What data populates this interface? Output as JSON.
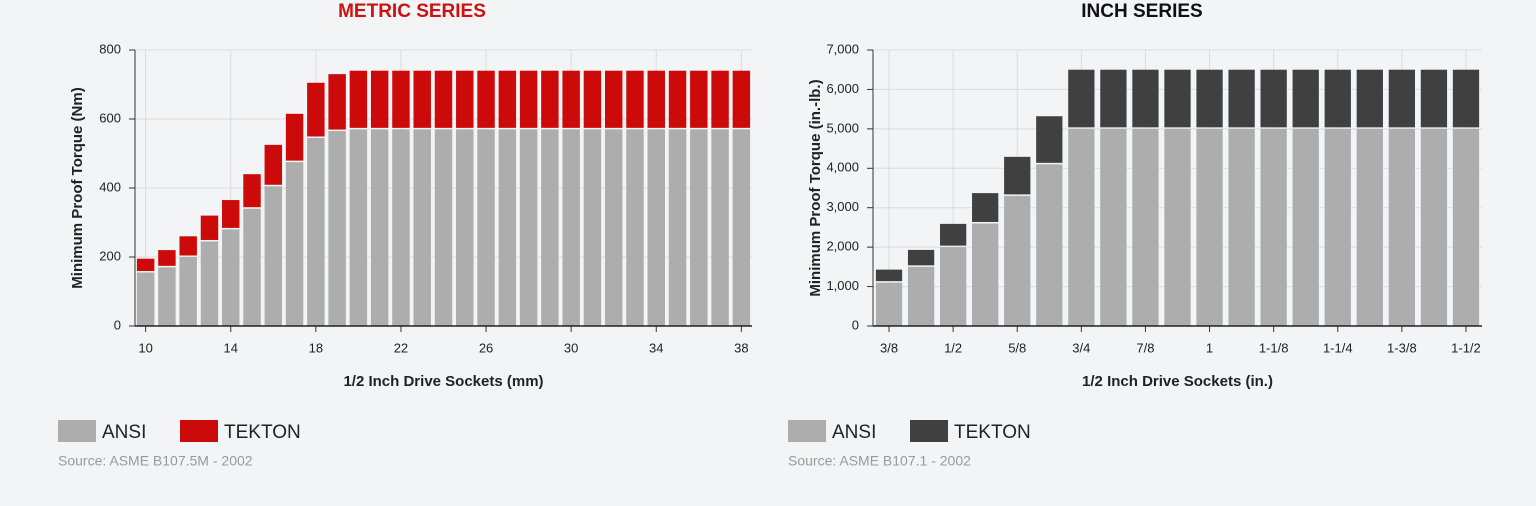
{
  "chart_data": [
    {
      "type": "bar",
      "stacked": true,
      "title": "METRIC SERIES",
      "title_color": "#cc1111",
      "x_label": "1/2 Inch Drive Sockets (mm)",
      "y_label": "Minimum Proof Torque (Nm)",
      "x": [
        10,
        11,
        12,
        13,
        14,
        15,
        16,
        17,
        18,
        19,
        20,
        21,
        22,
        23,
        24,
        25,
        26,
        27,
        28,
        29,
        30,
        31,
        32,
        33,
        34,
        35,
        36,
        37,
        38
      ],
      "xlim": [
        9.5,
        38.5
      ],
      "xticks": [
        10,
        14,
        18,
        22,
        26,
        30,
        34,
        38
      ],
      "ylim": [
        0,
        800
      ],
      "yticks": [
        0,
        200,
        400,
        600,
        800
      ],
      "grid": true,
      "series": [
        {
          "name": "ANSI",
          "color": "#adadad",
          "values": [
            155,
            170,
            200,
            245,
            280,
            340,
            405,
            475,
            545,
            565,
            570,
            570,
            570,
            570,
            570,
            570,
            570,
            570,
            570,
            570,
            570,
            570,
            570,
            570,
            570,
            570,
            570,
            570,
            570
          ]
        },
        {
          "name": "TEKTON",
          "color": "#cc0a0a",
          "values": [
            40,
            50,
            60,
            75,
            85,
            100,
            120,
            140,
            160,
            165,
            170,
            170,
            170,
            170,
            170,
            170,
            170,
            170,
            170,
            170,
            170,
            170,
            170,
            170,
            170,
            170,
            170,
            170,
            170
          ]
        }
      ],
      "source": "Source: ASME B107.5M - 2002"
    },
    {
      "type": "bar",
      "stacked": true,
      "title": "INCH SERIES",
      "title_color": "#111111",
      "x_label": "1/2 Inch Drive Sockets (in.)",
      "y_label": "Minimum Proof Torque (in.-lb.)",
      "categories": [
        "3/8",
        null,
        "1/2",
        null,
        "5/8",
        null,
        "3/4",
        null,
        "7/8",
        null,
        "1",
        null,
        "1-1/8",
        null,
        "1-1/4",
        null,
        "1-3/8",
        null,
        "1-1/2"
      ],
      "ylim": [
        0,
        7000
      ],
      "yticks": [
        0,
        {
          "value": 1000,
          "label": "1,000"
        },
        {
          "value": 2000,
          "label": "2,000"
        },
        {
          "value": 3000,
          "label": "3,000"
        },
        {
          "value": 4000,
          "label": "4,000"
        },
        {
          "value": 5000,
          "label": "5,000"
        },
        {
          "value": 6000,
          "label": "6,000"
        },
        {
          "value": 7000,
          "label": "7,000"
        }
      ],
      "grid": true,
      "series": [
        {
          "name": "ANSI",
          "color": "#adadad",
          "values": [
            1100,
            1500,
            2000,
            2600,
            3300,
            4100,
            5000,
            5000,
            5000,
            5000,
            5000,
            5000,
            5000,
            5000,
            5000,
            5000,
            5000,
            5000,
            5000
          ]
        },
        {
          "name": "TEKTON",
          "color": "#404040",
          "values": [
            330,
            430,
            590,
            770,
            990,
            1220,
            1500,
            1500,
            1500,
            1500,
            1500,
            1500,
            1500,
            1500,
            1500,
            1500,
            1500,
            1500,
            1500
          ]
        }
      ],
      "source": "Source: ASME B107.1 - 2002"
    }
  ]
}
